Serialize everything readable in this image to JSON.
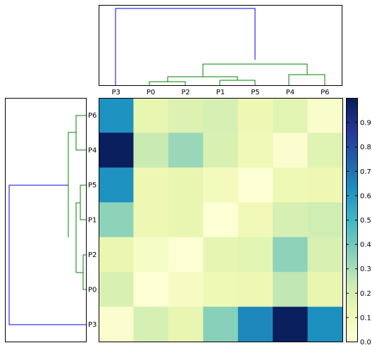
{
  "chart_data": {
    "type": "heatmap",
    "columns": [
      "P3",
      "P0",
      "P2",
      "P1",
      "P5",
      "P4",
      "P6"
    ],
    "rows": [
      "P6",
      "P4",
      "P5",
      "P1",
      "P2",
      "P0",
      "P3"
    ],
    "values": [
      [
        0.62,
        0.14,
        0.18,
        0.2,
        0.12,
        0.16,
        0.04
      ],
      [
        0.99,
        0.24,
        0.33,
        0.19,
        0.1,
        0.03,
        0.17
      ],
      [
        0.62,
        0.12,
        0.14,
        0.09,
        0.02,
        0.11,
        0.12
      ],
      [
        0.35,
        0.12,
        0.14,
        0.02,
        0.1,
        0.2,
        0.22
      ],
      [
        0.13,
        0.06,
        0.02,
        0.15,
        0.16,
        0.35,
        0.19
      ],
      [
        0.19,
        0.02,
        0.07,
        0.11,
        0.12,
        0.26,
        0.14
      ],
      [
        0.03,
        0.2,
        0.14,
        0.36,
        0.65,
        0.99,
        0.63
      ]
    ],
    "colorbar": {
      "range": [
        0.0,
        1.0
      ],
      "ticks": [
        "0.0",
        "0.1",
        "0.2",
        "0.3",
        "0.4",
        "0.5",
        "0.6",
        "0.7",
        "0.8",
        "0.9"
      ],
      "colormap": "YlGnBu"
    },
    "dendrogram_colors": {
      "cluster": "#008000",
      "root": "#0000ff"
    }
  }
}
